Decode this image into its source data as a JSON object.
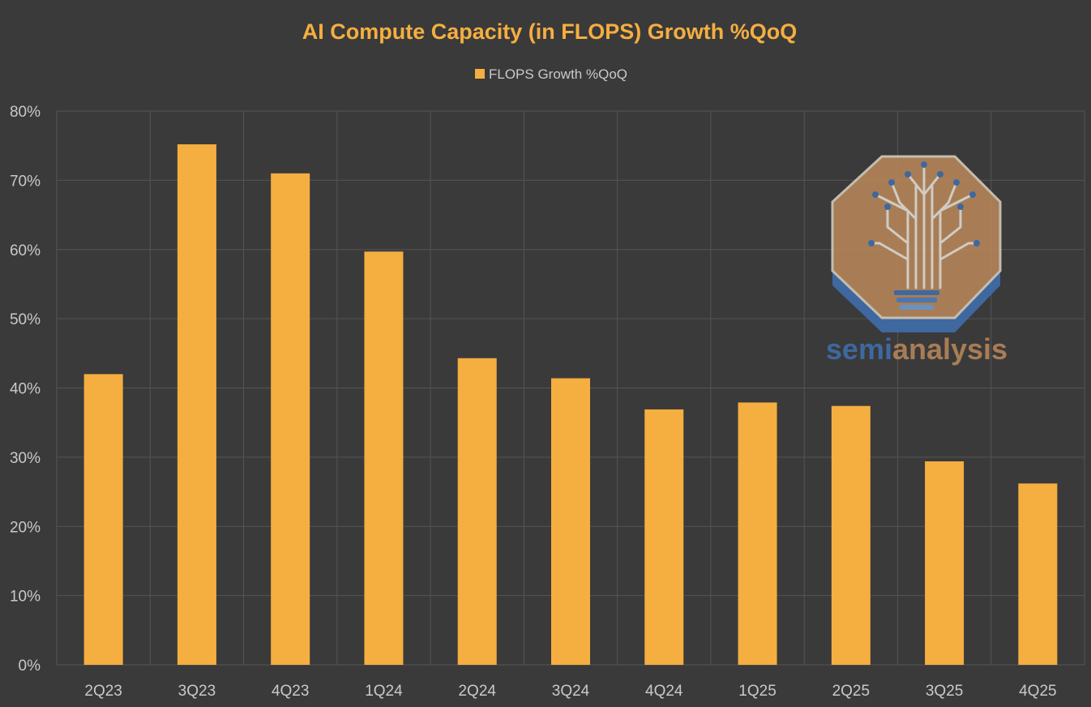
{
  "chart_data": {
    "type": "bar",
    "title": "AI Compute Capacity (in FLOPS) Growth %QoQ",
    "xlabel": "",
    "ylabel": "",
    "categories": [
      "2Q23",
      "3Q23",
      "4Q23",
      "1Q24",
      "2Q24",
      "3Q24",
      "4Q24",
      "1Q25",
      "2Q25",
      "3Q25",
      "4Q25"
    ],
    "series": [
      {
        "name": "FLOPS Growth %QoQ",
        "values": [
          42,
          75.2,
          71,
          59.7,
          44.3,
          41.4,
          36.9,
          37.9,
          37.4,
          29.4,
          26.2
        ],
        "color": "#f5ae40"
      }
    ],
    "ylim": [
      0,
      80
    ],
    "y_ticks": [
      "0%",
      "10%",
      "20%",
      "30%",
      "40%",
      "50%",
      "60%",
      "70%",
      "80%"
    ],
    "grid": true,
    "legend_position": "top-center",
    "background_color": "#3a3a3a",
    "grid_color": "#555555",
    "title_color": "#f5ae40"
  },
  "watermark": {
    "word_part1": "semi",
    "word_part2": "analysis",
    "color_part1": "#3f6fae",
    "color_part2": "#b8875a",
    "badge_color": "#b8875a",
    "badge_shadow_color": "#3f6fae"
  }
}
